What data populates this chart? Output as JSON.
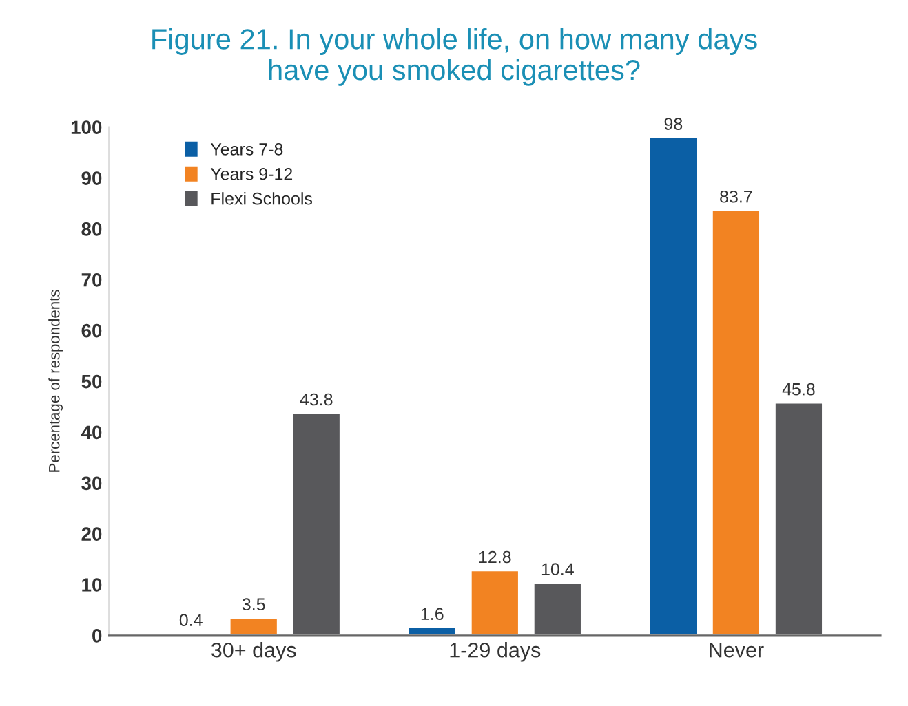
{
  "chart_data": {
    "type": "bar",
    "title": "Figure 21. In your whole life, on how many days\nhave you smoked cigarettes?",
    "ylabel": "Percentage of respondents",
    "categories": [
      "30+ days",
      "1-29 days",
      "Never"
    ],
    "series": [
      {
        "name": "Years 7-8",
        "color": "#0b5fa5",
        "values": [
          0.4,
          1.6,
          98
        ]
      },
      {
        "name": "Years 9-12",
        "color": "#f28322",
        "values": [
          3.5,
          12.8,
          83.7
        ]
      },
      {
        "name": "Flexi Schools",
        "color": "#58585b",
        "values": [
          43.8,
          10.4,
          45.8
        ]
      }
    ],
    "ylim": [
      0,
      100
    ],
    "yticks": [
      0,
      10,
      20,
      30,
      40,
      50,
      60,
      70,
      80,
      90,
      100
    ],
    "data_labels": true,
    "legend": "top left",
    "grid": false
  }
}
